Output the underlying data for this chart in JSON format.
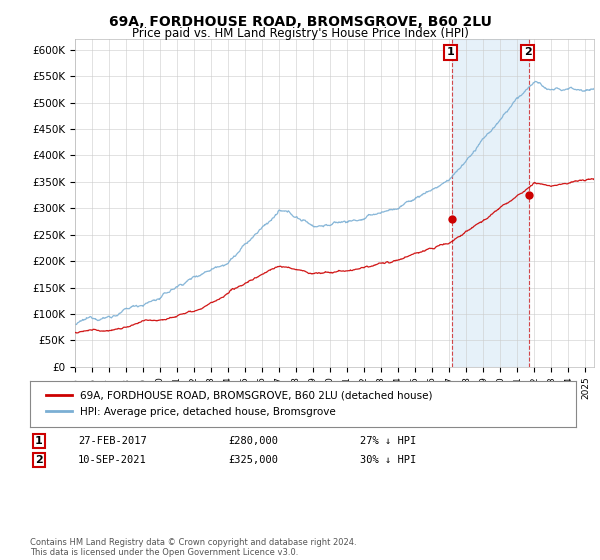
{
  "title_line1": "69A, FORDHOUSE ROAD, BROMSGROVE, B60 2LU",
  "title_line2": "Price paid vs. HM Land Registry's House Price Index (HPI)",
  "ylim": [
    0,
    620000
  ],
  "xlim_start": 1995.0,
  "xlim_end": 2025.5,
  "hpi_color": "#7bafd4",
  "hpi_fill_color": "#d6e8f5",
  "price_color": "#cc0000",
  "marker1_year": 2017.15,
  "marker1_price": 280000,
  "marker2_year": 2021.7,
  "marker2_price": 325000,
  "legend_label1": "69A, FORDHOUSE ROAD, BROMSGROVE, B60 2LU (detached house)",
  "legend_label2": "HPI: Average price, detached house, Bromsgrove",
  "note1_date": "27-FEB-2017",
  "note1_price": "£280,000",
  "note1_pct": "27% ↓ HPI",
  "note2_date": "10-SEP-2021",
  "note2_price": "£325,000",
  "note2_pct": "30% ↓ HPI",
  "footer": "Contains HM Land Registry data © Crown copyright and database right 2024.\nThis data is licensed under the Open Government Licence v3.0.",
  "background_color": "#ffffff",
  "grid_color": "#cccccc"
}
